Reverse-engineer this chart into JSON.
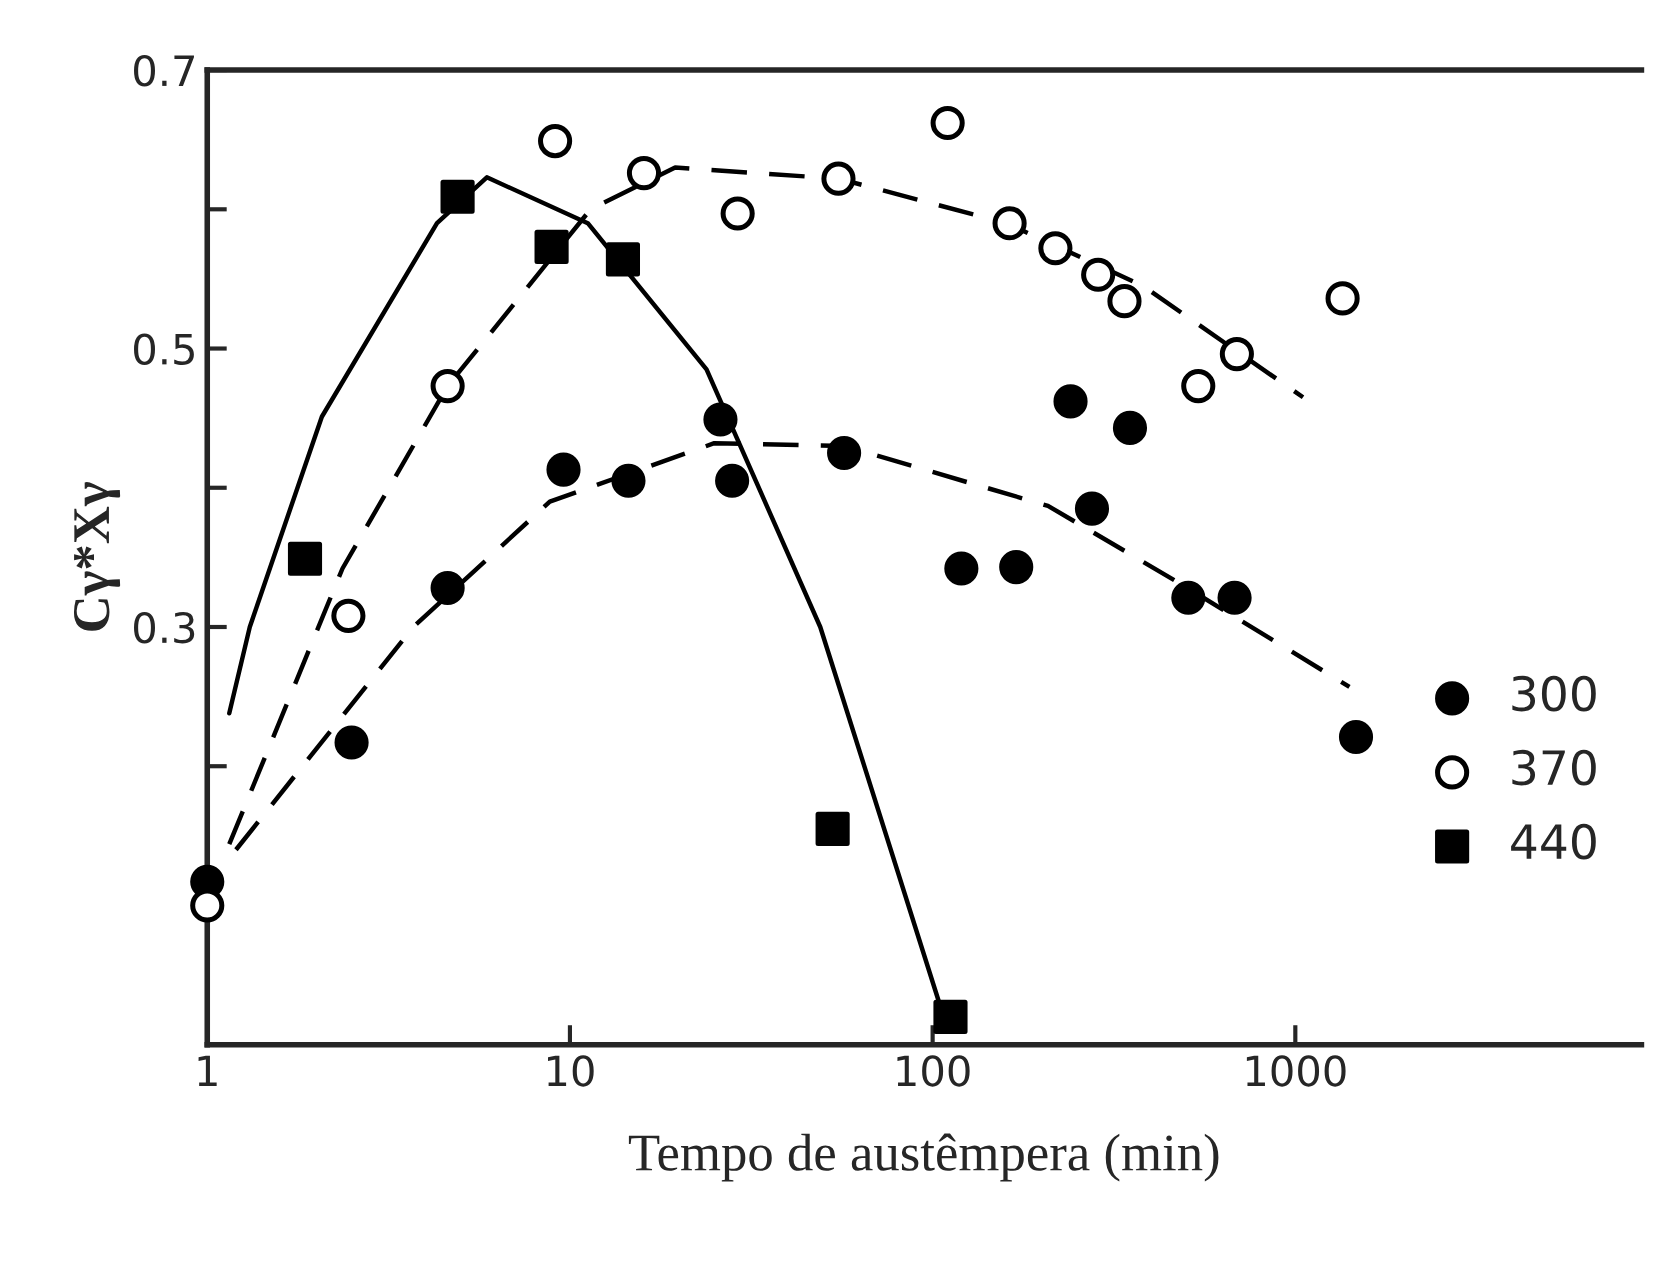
{
  "chart_data": {
    "type": "scatter",
    "xlabel": "Tempo de austêmpera (min)",
    "ylabel": "Cγ*Xγ",
    "log": "x",
    "xlim": [
      1,
      9000
    ],
    "xticks": [
      1,
      10,
      100,
      1000
    ],
    "ylim": [
      0,
      0.7
    ],
    "yticks": [
      {
        "value": 0.2,
        "label": null
      },
      0.3,
      {
        "value": 0.4,
        "label": null
      },
      0.5,
      {
        "value": 0.6,
        "label": null
      },
      0.7
    ],
    "grid": false,
    "legend": "right",
    "series": [
      {
        "name": "300",
        "color": "#000000",
        "marker": "circle",
        "x": [
          1,
          2.5,
          4.6,
          9.6,
          14.5,
          26,
          28,
          57,
          120,
          170,
          240,
          275,
          350,
          507,
          680,
          1470
        ],
        "values": [
          0.117,
          0.217,
          0.328,
          0.413,
          0.405,
          0.449,
          0.405,
          0.425,
          0.342,
          0.343,
          0.462,
          0.385,
          0.443,
          0.321,
          0.321,
          0.221
        ]
      },
      {
        "name": "370",
        "color": "#ffffff",
        "marker": "circle",
        "x": [
          1,
          2.45,
          4.6,
          9.1,
          16,
          29,
          55,
          110,
          163,
          218,
          286,
          338,
          540,
          690,
          1350
        ],
        "values": [
          0.1,
          0.308,
          0.473,
          0.649,
          0.626,
          0.597,
          0.622,
          0.662,
          0.59,
          0.572,
          0.553,
          0.534,
          0.473,
          0.496,
          0.536
        ]
      },
      {
        "name": "440",
        "color": "#000000",
        "marker": "square",
        "x": [
          1.86,
          4.9,
          8.9,
          14,
          53,
          112
        ],
        "values": [
          0.349,
          0.609,
          0.573,
          0.564,
          0.155,
          0.02
        ]
      },
      {
        "type": "line",
        "color": "#000000",
        "line_style": "dashed",
        "x": [
          1.2,
          3.7,
          8.8,
          25,
          57,
          208,
          490,
          1410
        ],
        "values": [
          0.14,
          0.3,
          0.39,
          0.432,
          0.43,
          0.387,
          0.33,
          0.257
        ]
      },
      {
        "type": "line",
        "color": "#000000",
        "line_style": "dashed",
        "x": [
          1.15,
          2.36,
          4.6,
          11.4,
          19.5,
          55,
          160,
          380,
          1050
        ],
        "values": [
          0.144,
          0.342,
          0.473,
          0.6,
          0.63,
          0.622,
          0.59,
          0.545,
          0.465
        ]
      },
      {
        "type": "line",
        "color": "#000000",
        "line_style": "solid",
        "x": [
          1.15,
          1.31,
          2.07,
          4.3,
          5.9,
          11.2,
          23.8,
          49,
          104
        ],
        "values": [
          0.238,
          0.3,
          0.451,
          0.59,
          0.623,
          0.59,
          0.485,
          0.3,
          0.031
        ]
      }
    ]
  }
}
